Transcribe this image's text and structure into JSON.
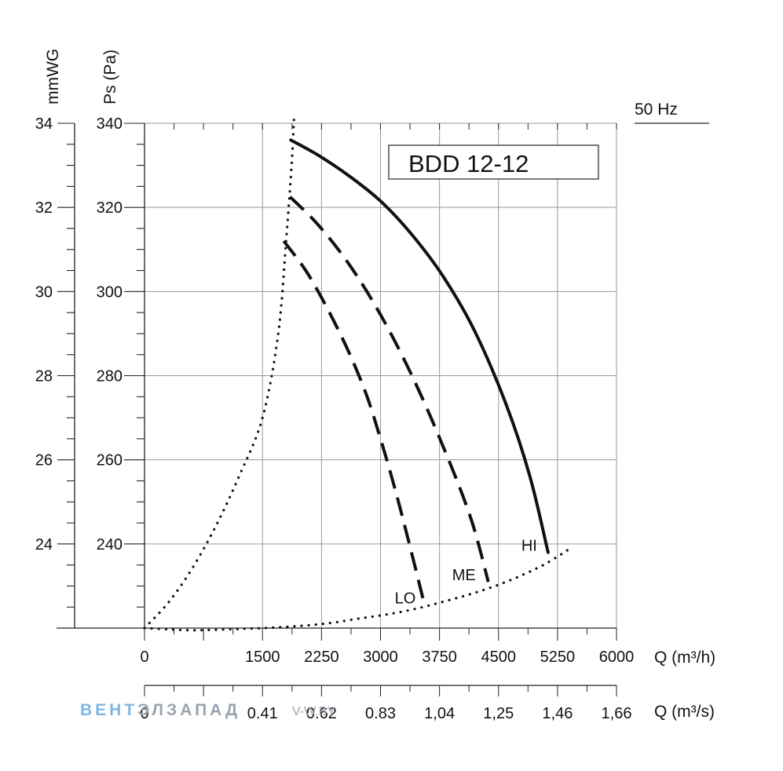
{
  "chart_data": {
    "type": "line",
    "title": "BDD 12-12",
    "frequency_label": "50 Hz",
    "xlabel": "Q (m³/h)",
    "xlabel2": "Q (m³/s)",
    "ylabel": "Ps (Pa)",
    "ylabel2": "mmWG",
    "xlim": [
      0,
      6000
    ],
    "ylim": [
      220,
      340
    ],
    "x_ticks": [
      {
        "value": 0,
        "label": "0"
      },
      {
        "value": 1500,
        "label": "1500"
      },
      {
        "value": 2250,
        "label": "2250"
      },
      {
        "value": 3000,
        "label": "3000"
      },
      {
        "value": 3750,
        "label": "3750"
      },
      {
        "value": 4500,
        "label": "4500"
      },
      {
        "value": 5250,
        "label": "5250"
      },
      {
        "value": 6000,
        "label": "6000"
      }
    ],
    "x2_ticks": [
      {
        "value": 0,
        "label": "0"
      },
      {
        "value": 1500,
        "label": "0.41"
      },
      {
        "value": 2250,
        "label": "0.62"
      },
      {
        "value": 3000,
        "label": "0.83"
      },
      {
        "value": 3750,
        "label": "1,04"
      },
      {
        "value": 4500,
        "label": "1,25"
      },
      {
        "value": 5250,
        "label": "1,46"
      },
      {
        "value": 6000,
        "label": "1,66"
      }
    ],
    "y_ticks": [
      {
        "value": 240,
        "label": "240"
      },
      {
        "value": 260,
        "label": "260"
      },
      {
        "value": 280,
        "label": "280"
      },
      {
        "value": 300,
        "label": "300"
      },
      {
        "value": 320,
        "label": "320"
      },
      {
        "value": 340,
        "label": "340"
      }
    ],
    "y2_ticks": [
      {
        "value": 240,
        "label": "24"
      },
      {
        "value": 260,
        "label": "26"
      },
      {
        "value": 280,
        "label": "28"
      },
      {
        "value": 300,
        "label": "30"
      },
      {
        "value": 320,
        "label": "32"
      },
      {
        "value": 340,
        "label": "34"
      }
    ],
    "grid": true,
    "series": [
      {
        "name": "HI",
        "style": "solid",
        "x": [
          1860,
          2200,
          2600,
          3000,
          3400,
          3800,
          4200,
          4600,
          4900,
          5130
        ],
        "y": [
          336,
          332.5,
          327.5,
          321.5,
          313.5,
          303.5,
          290.5,
          273,
          256,
          238
        ]
      },
      {
        "name": "ME",
        "style": "dashed",
        "x": [
          1850,
          2200,
          2600,
          3000,
          3400,
          3800,
          4150,
          4370
        ],
        "y": [
          322.5,
          316,
          306.5,
          294.5,
          280,
          263,
          246,
          231
        ]
      },
      {
        "name": "LO",
        "style": "dashed",
        "x": [
          1770,
          2100,
          2500,
          2800,
          3000,
          3200,
          3400,
          3560
        ],
        "y": [
          312,
          303.5,
          289.5,
          276.5,
          265,
          252,
          237.5,
          225.5
        ]
      },
      {
        "name": "system-curve-low",
        "style": "dotted",
        "x": [
          0,
          300,
          600,
          900,
          1200,
          1500,
          1800,
          2100,
          2400,
          2700,
          3000,
          3300,
          3600,
          3900,
          4200,
          4500,
          4800,
          5100,
          5400
        ],
        "y": [
          220,
          219.7,
          219.5,
          219.6,
          219.8,
          220,
          220.3,
          220.7,
          221.3,
          222.2,
          223,
          224,
          225.3,
          226.8,
          228.4,
          230.3,
          232.6,
          235.3,
          238.8
        ]
      },
      {
        "name": "system-curve-high",
        "style": "dotted",
        "x": [
          0,
          300,
          600,
          900,
          1200,
          1500,
          1700,
          1800,
          1870,
          1900
        ],
        "y": [
          220,
          226,
          234,
          244,
          256,
          270,
          290,
          312,
          330,
          341
        ]
      }
    ],
    "labels": [
      {
        "text": "HI",
        "series": "HI"
      },
      {
        "text": "ME",
        "series": "ME"
      },
      {
        "text": "LO",
        "series": "LO"
      }
    ]
  },
  "watermark": {
    "text_blue": "ВЕНТ",
    "text_gray": "ЭЛЗАПАД",
    "url": "V-W.BY"
  }
}
